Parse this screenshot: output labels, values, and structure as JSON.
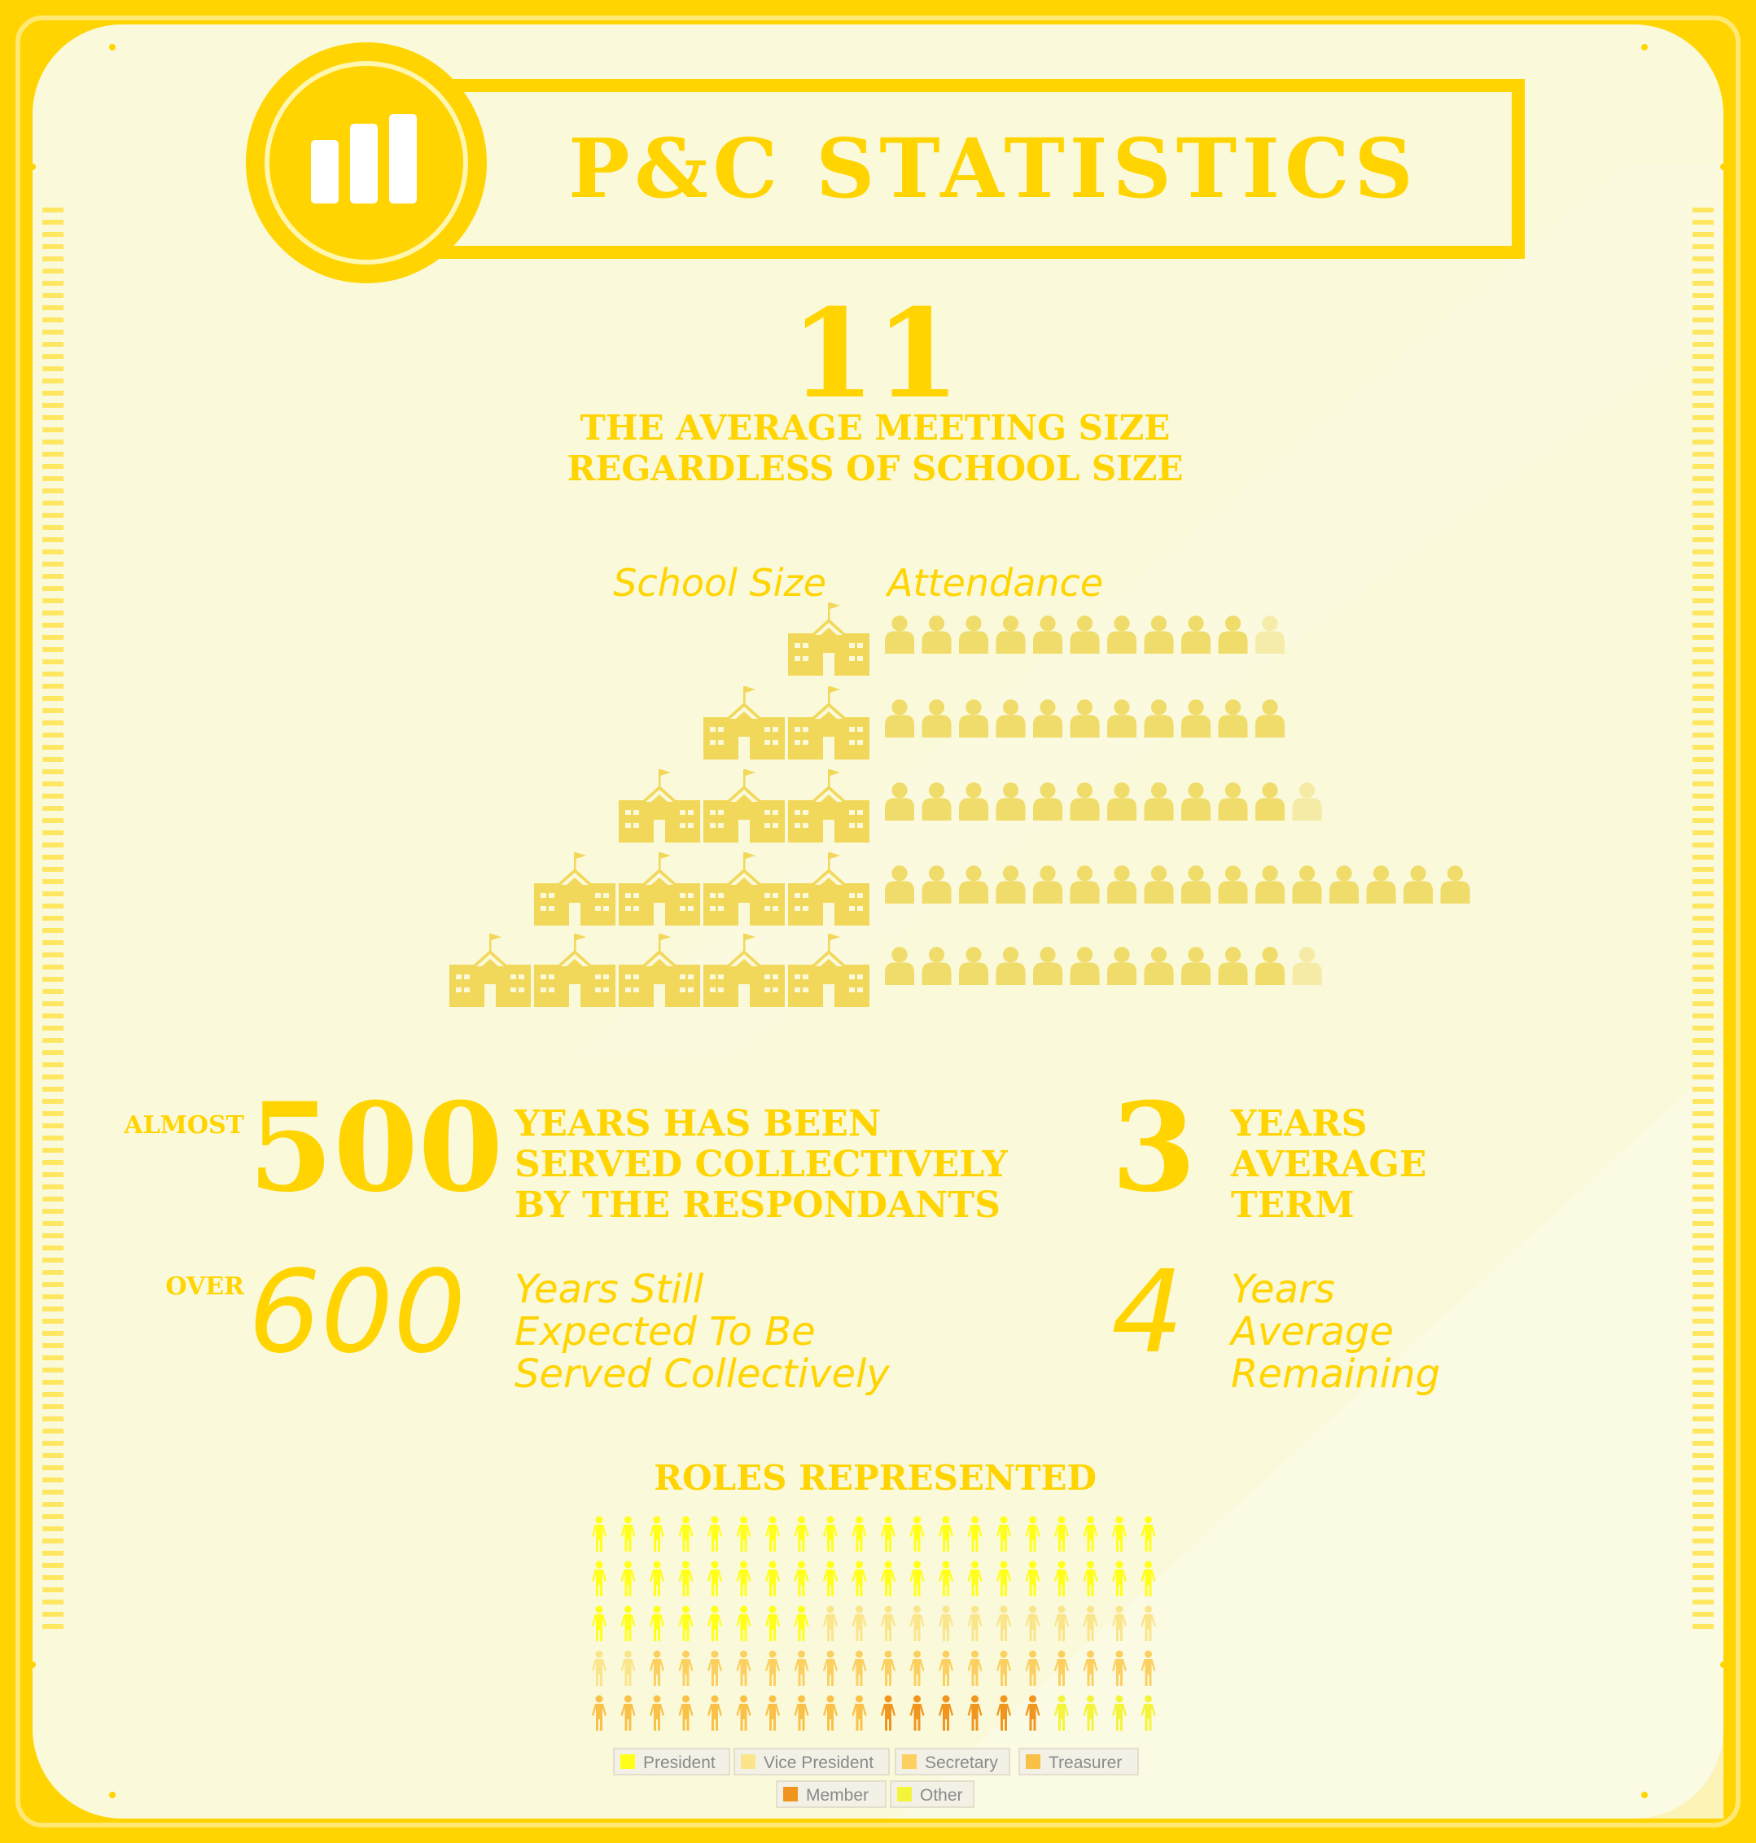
{
  "colors": {
    "frame": "#ffd400",
    "panel": "#faf9d9",
    "text": "#ffd400",
    "school": "#f2d85a",
    "person": "#f0dc6a"
  },
  "header": {
    "icon": "bar-chart-icon",
    "title": "P&C STATISTICS"
  },
  "meeting": {
    "number": "11",
    "caption_line1": "THE AVERAGE MEETING SIZE",
    "caption_line2": "REGARDLESS OF SCHOOL SIZE"
  },
  "attendance_chart": {
    "school_size_label": "School Size",
    "attendance_label": "Attendance",
    "rows": [
      {
        "schools": 1,
        "attendance": 10.7
      },
      {
        "schools": 2,
        "attendance": 11
      },
      {
        "schools": 3,
        "attendance": 11.8
      },
      {
        "schools": 4,
        "attendance": 16
      },
      {
        "schools": 5,
        "attendance": 11.8
      }
    ]
  },
  "stats": {
    "served": {
      "prefix": "ALMOST",
      "number": "500",
      "line1": "YEARS HAS BEEN",
      "line2": "SERVED COLLECTIVELY",
      "line3": "BY THE RESPONDANTS"
    },
    "term": {
      "number": "3",
      "line1": "YEARS",
      "line2": "AVERAGE",
      "line3": "TERM"
    },
    "expected": {
      "prefix": "OVER",
      "number": "600",
      "line1": "Years Still",
      "line2": "Expected To Be",
      "line3": "Served Collectively"
    },
    "remaining": {
      "number": "4",
      "line1": "Years",
      "line2": "Average",
      "line3": "Remaining"
    }
  },
  "roles": {
    "title": "ROLES REPRESENTED",
    "grid_rows": [
      [
        "President",
        "President",
        "President",
        "President",
        "President",
        "President",
        "President",
        "President",
        "President",
        "President",
        "President",
        "President",
        "President",
        "President",
        "President",
        "President",
        "President",
        "President",
        "President",
        "President"
      ],
      [
        "President",
        "President",
        "President",
        "President",
        "President",
        "President",
        "President",
        "President",
        "President",
        "President",
        "President",
        "President",
        "President",
        "President",
        "President",
        "President",
        "President",
        "President",
        "President",
        "President"
      ],
      [
        "President",
        "President",
        "President",
        "President",
        "President",
        "President",
        "President",
        "President",
        "Vice President",
        "Vice President",
        "Vice President",
        "Vice President",
        "Vice President",
        "Vice President",
        "Vice President",
        "Vice President",
        "Vice President",
        "Vice President",
        "Vice President",
        "Vice President"
      ],
      [
        "Vice President",
        "Vice President",
        "Secretary",
        "Secretary",
        "Secretary",
        "Secretary",
        "Secretary",
        "Secretary",
        "Secretary",
        "Secretary",
        "Secretary",
        "Secretary",
        "Secretary",
        "Secretary",
        "Secretary",
        "Secretary",
        "Secretary",
        "Secretary",
        "Secretary",
        "Secretary"
      ],
      [
        "Treasurer",
        "Treasurer",
        "Treasurer",
        "Treasurer",
        "Treasurer",
        "Treasurer",
        "Treasurer",
        "Treasurer",
        "Treasurer",
        "Treasurer",
        "Member",
        "Member",
        "Member",
        "Member",
        "Member",
        "Member",
        "Other",
        "Other",
        "Other",
        "Other"
      ]
    ],
    "legend": [
      {
        "label": "President",
        "color": "#ffff1a"
      },
      {
        "label": "Vice President",
        "color": "#fbe58a"
      },
      {
        "label": "Secretary",
        "color": "#fbd060"
      },
      {
        "label": "Treasurer",
        "color": "#f9c147"
      },
      {
        "label": "Member",
        "color": "#f0961e"
      },
      {
        "label": "Other",
        "color": "#f4f43a"
      }
    ]
  }
}
